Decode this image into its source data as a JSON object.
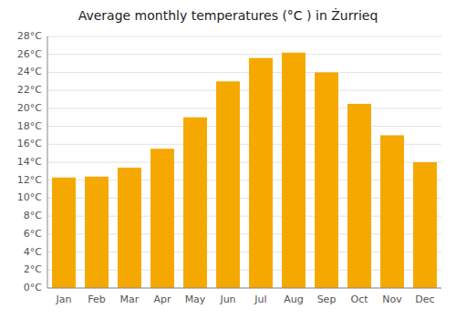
{
  "chart_data": {
    "type": "bar",
    "title": "Average monthly temperatures (°C ) in Żurrieq",
    "categories": [
      "Jan",
      "Feb",
      "Mar",
      "Apr",
      "May",
      "Jun",
      "Jul",
      "Aug",
      "Sep",
      "Oct",
      "Nov",
      "Dec"
    ],
    "values": [
      12.3,
      12.4,
      13.4,
      15.5,
      19.0,
      23.0,
      25.6,
      26.2,
      24.0,
      20.5,
      17.0,
      14.0
    ],
    "color": "#F5A800",
    "ylim": [
      0,
      28
    ],
    "yticks": [
      {
        "value": 0,
        "label": "0°C"
      },
      {
        "value": 2,
        "label": "2°C"
      },
      {
        "value": 4,
        "label": "4°C"
      },
      {
        "value": 6,
        "label": "6°C"
      },
      {
        "value": 8,
        "label": "8°C"
      },
      {
        "value": 10,
        "label": "10°C"
      },
      {
        "value": 12,
        "label": "12°C"
      },
      {
        "value": 14,
        "label": "14°C"
      },
      {
        "value": 16,
        "label": "16°C"
      },
      {
        "value": 18,
        "label": "18°C"
      },
      {
        "value": 20,
        "label": "20°C"
      },
      {
        "value": 22,
        "label": "22°C"
      },
      {
        "value": 24,
        "label": "24°C"
      },
      {
        "value": 26,
        "label": "26°C"
      },
      {
        "value": 28,
        "label": "28°C"
      }
    ],
    "grid": true
  }
}
